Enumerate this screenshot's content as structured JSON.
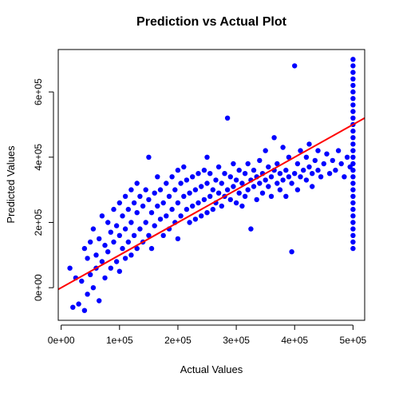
{
  "chart_data": {
    "type": "scatter",
    "title": "Prediction vs Actual Plot",
    "xlabel": "Actual Values",
    "ylabel": "Predicted Values",
    "xlim": [
      -5000,
      520000
    ],
    "ylim": [
      -100000,
      730000
    ],
    "x_ticks": [
      0,
      100000,
      200000,
      300000,
      400000,
      500000
    ],
    "x_tick_labels": [
      "0e+00",
      "1e+05",
      "2e+05",
      "3e+05",
      "4e+05",
      "5e+05"
    ],
    "y_ticks": [
      0,
      200000,
      400000,
      600000
    ],
    "y_tick_labels": [
      "0e+00",
      "2e+05",
      "4e+05",
      "6e+05"
    ],
    "grid": false,
    "legend": "none",
    "point_color": "#0000ff",
    "line_color": "#ff0000",
    "reference_line": {
      "type": "y=x"
    },
    "points": [
      [
        15000,
        60000
      ],
      [
        20000,
        -60000
      ],
      [
        25000,
        30000
      ],
      [
        30000,
        -50000
      ],
      [
        35000,
        20000
      ],
      [
        40000,
        -70000
      ],
      [
        40000,
        120000
      ],
      [
        45000,
        90000
      ],
      [
        45000,
        -20000
      ],
      [
        50000,
        140000
      ],
      [
        50000,
        40000
      ],
      [
        55000,
        0
      ],
      [
        55000,
        180000
      ],
      [
        60000,
        100000
      ],
      [
        60000,
        60000
      ],
      [
        65000,
        150000
      ],
      [
        65000,
        -40000
      ],
      [
        70000,
        220000
      ],
      [
        70000,
        80000
      ],
      [
        75000,
        130000
      ],
      [
        75000,
        30000
      ],
      [
        80000,
        200000
      ],
      [
        80000,
        110000
      ],
      [
        85000,
        170000
      ],
      [
        85000,
        60000
      ],
      [
        90000,
        240000
      ],
      [
        90000,
        140000
      ],
      [
        95000,
        190000
      ],
      [
        95000,
        80000
      ],
      [
        100000,
        260000
      ],
      [
        100000,
        160000
      ],
      [
        100000,
        50000
      ],
      [
        105000,
        220000
      ],
      [
        105000,
        120000
      ],
      [
        110000,
        280000
      ],
      [
        110000,
        180000
      ],
      [
        110000,
        90000
      ],
      [
        115000,
        240000
      ],
      [
        115000,
        140000
      ],
      [
        120000,
        300000
      ],
      [
        120000,
        200000
      ],
      [
        120000,
        100000
      ],
      [
        125000,
        260000
      ],
      [
        125000,
        160000
      ],
      [
        130000,
        230000
      ],
      [
        130000,
        120000
      ],
      [
        130000,
        320000
      ],
      [
        135000,
        280000
      ],
      [
        135000,
        180000
      ],
      [
        140000,
        250000
      ],
      [
        140000,
        140000
      ],
      [
        145000,
        300000
      ],
      [
        145000,
        200000
      ],
      [
        150000,
        270000
      ],
      [
        150000,
        160000
      ],
      [
        150000,
        400000
      ],
      [
        155000,
        230000
      ],
      [
        155000,
        120000
      ],
      [
        160000,
        290000
      ],
      [
        160000,
        190000
      ],
      [
        165000,
        250000
      ],
      [
        165000,
        340000
      ],
      [
        170000,
        210000
      ],
      [
        170000,
        300000
      ],
      [
        175000,
        260000
      ],
      [
        175000,
        160000
      ],
      [
        180000,
        320000
      ],
      [
        180000,
        220000
      ],
      [
        185000,
        280000
      ],
      [
        185000,
        180000
      ],
      [
        190000,
        240000
      ],
      [
        190000,
        340000
      ],
      [
        195000,
        300000
      ],
      [
        195000,
        200000
      ],
      [
        200000,
        260000
      ],
      [
        200000,
        360000
      ],
      [
        200000,
        150000
      ],
      [
        205000,
        320000
      ],
      [
        205000,
        220000
      ],
      [
        210000,
        280000
      ],
      [
        210000,
        370000
      ],
      [
        215000,
        240000
      ],
      [
        215000,
        330000
      ],
      [
        220000,
        290000
      ],
      [
        220000,
        200000
      ],
      [
        225000,
        340000
      ],
      [
        225000,
        250000
      ],
      [
        230000,
        300000
      ],
      [
        230000,
        210000
      ],
      [
        235000,
        350000
      ],
      [
        235000,
        260000
      ],
      [
        240000,
        310000
      ],
      [
        240000,
        220000
      ],
      [
        245000,
        360000
      ],
      [
        245000,
        270000
      ],
      [
        250000,
        320000
      ],
      [
        250000,
        230000
      ],
      [
        250000,
        400000
      ],
      [
        255000,
        280000
      ],
      [
        255000,
        350000
      ],
      [
        260000,
        300000
      ],
      [
        260000,
        240000
      ],
      [
        265000,
        330000
      ],
      [
        265000,
        260000
      ],
      [
        270000,
        370000
      ],
      [
        270000,
        290000
      ],
      [
        275000,
        320000
      ],
      [
        275000,
        250000
      ],
      [
        280000,
        350000
      ],
      [
        280000,
        280000
      ],
      [
        285000,
        300000
      ],
      [
        285000,
        520000
      ],
      [
        290000,
        340000
      ],
      [
        290000,
        270000
      ],
      [
        295000,
        310000
      ],
      [
        295000,
        380000
      ],
      [
        300000,
        330000
      ],
      [
        300000,
        260000
      ],
      [
        305000,
        360000
      ],
      [
        305000,
        290000
      ],
      [
        310000,
        320000
      ],
      [
        310000,
        250000
      ],
      [
        315000,
        350000
      ],
      [
        315000,
        280000
      ],
      [
        320000,
        300000
      ],
      [
        320000,
        380000
      ],
      [
        325000,
        330000
      ],
      [
        325000,
        180000
      ],
      [
        330000,
        310000
      ],
      [
        330000,
        360000
      ],
      [
        335000,
        340000
      ],
      [
        335000,
        270000
      ],
      [
        340000,
        320000
      ],
      [
        340000,
        390000
      ],
      [
        345000,
        350000
      ],
      [
        345000,
        290000
      ],
      [
        350000,
        330000
      ],
      [
        350000,
        420000
      ],
      [
        355000,
        310000
      ],
      [
        355000,
        370000
      ],
      [
        360000,
        340000
      ],
      [
        360000,
        280000
      ],
      [
        365000,
        360000
      ],
      [
        365000,
        460000
      ],
      [
        370000,
        320000
      ],
      [
        370000,
        380000
      ],
      [
        375000,
        350000
      ],
      [
        375000,
        300000
      ],
      [
        380000,
        330000
      ],
      [
        380000,
        430000
      ],
      [
        385000,
        360000
      ],
      [
        385000,
        280000
      ],
      [
        390000,
        340000
      ],
      [
        390000,
        400000
      ],
      [
        395000,
        320000
      ],
      [
        395000,
        110000
      ],
      [
        400000,
        680000
      ],
      [
        400000,
        350000
      ],
      [
        405000,
        380000
      ],
      [
        405000,
        300000
      ],
      [
        410000,
        340000
      ],
      [
        410000,
        420000
      ],
      [
        415000,
        360000
      ],
      [
        420000,
        330000
      ],
      [
        420000,
        400000
      ],
      [
        425000,
        370000
      ],
      [
        425000,
        440000
      ],
      [
        430000,
        350000
      ],
      [
        430000,
        310000
      ],
      [
        435000,
        390000
      ],
      [
        440000,
        360000
      ],
      [
        440000,
        420000
      ],
      [
        445000,
        340000
      ],
      [
        450000,
        380000
      ],
      [
        455000,
        410000
      ],
      [
        460000,
        350000
      ],
      [
        465000,
        390000
      ],
      [
        470000,
        360000
      ],
      [
        475000,
        420000
      ],
      [
        480000,
        380000
      ],
      [
        485000,
        340000
      ],
      [
        490000,
        400000
      ],
      [
        495000,
        370000
      ],
      [
        500000,
        700000
      ],
      [
        500000,
        680000
      ],
      [
        500000,
        660000
      ],
      [
        500000,
        640000
      ],
      [
        500000,
        620000
      ],
      [
        500000,
        600000
      ],
      [
        500000,
        580000
      ],
      [
        500000,
        560000
      ],
      [
        500000,
        540000
      ],
      [
        500000,
        520000
      ],
      [
        500000,
        500000
      ],
      [
        500000,
        480000
      ],
      [
        500000,
        460000
      ],
      [
        500000,
        440000
      ],
      [
        500000,
        420000
      ],
      [
        500000,
        400000
      ],
      [
        500000,
        380000
      ],
      [
        500000,
        360000
      ],
      [
        500000,
        340000
      ],
      [
        500000,
        320000
      ],
      [
        500000,
        300000
      ],
      [
        500000,
        280000
      ],
      [
        500000,
        260000
      ],
      [
        500000,
        240000
      ],
      [
        500000,
        220000
      ],
      [
        500000,
        200000
      ],
      [
        500000,
        180000
      ],
      [
        500000,
        160000
      ],
      [
        500000,
        140000
      ],
      [
        500000,
        120000
      ]
    ]
  }
}
